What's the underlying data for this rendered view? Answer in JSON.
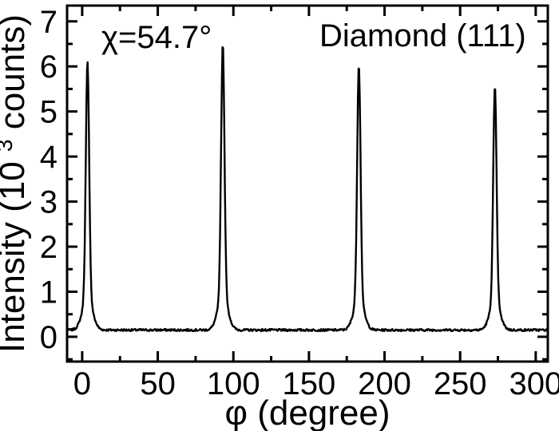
{
  "chart_data": {
    "type": "line",
    "title": "",
    "xlabel": "φ (degree)",
    "ylabel": "Intensity (10³ counts)",
    "ylabel_parts": [
      "Intensity (10",
      "3",
      " counts)"
    ],
    "annotations": {
      "chi": "χ=54.7°",
      "sample": "Diamond (111)"
    },
    "xlim": [
      -10,
      308
    ],
    "ylim": [
      -0.55,
      7.35
    ],
    "x_major_ticks": [
      0,
      50,
      100,
      150,
      200,
      250,
      300
    ],
    "x_minor_tick_step": 25,
    "y_major_ticks": [
      0,
      1,
      2,
      3,
      4,
      5,
      6,
      7
    ],
    "y_minor_tick_step": 0.5,
    "grid": false,
    "legend": null,
    "line_color": "#000000",
    "background_color": "#ffffff",
    "series": [
      {
        "name": "phi-scan",
        "baseline_intensity": 0.15,
        "noise_amplitude": 0.025,
        "peak_fwhm_deg": 2.6,
        "peaks": [
          {
            "phi": 3.5,
            "intensity": 6.1
          },
          {
            "phi": 93,
            "intensity": 6.5
          },
          {
            "phi": 183,
            "intensity": 6.05
          },
          {
            "phi": 273,
            "intensity": 5.55
          }
        ]
      }
    ]
  }
}
